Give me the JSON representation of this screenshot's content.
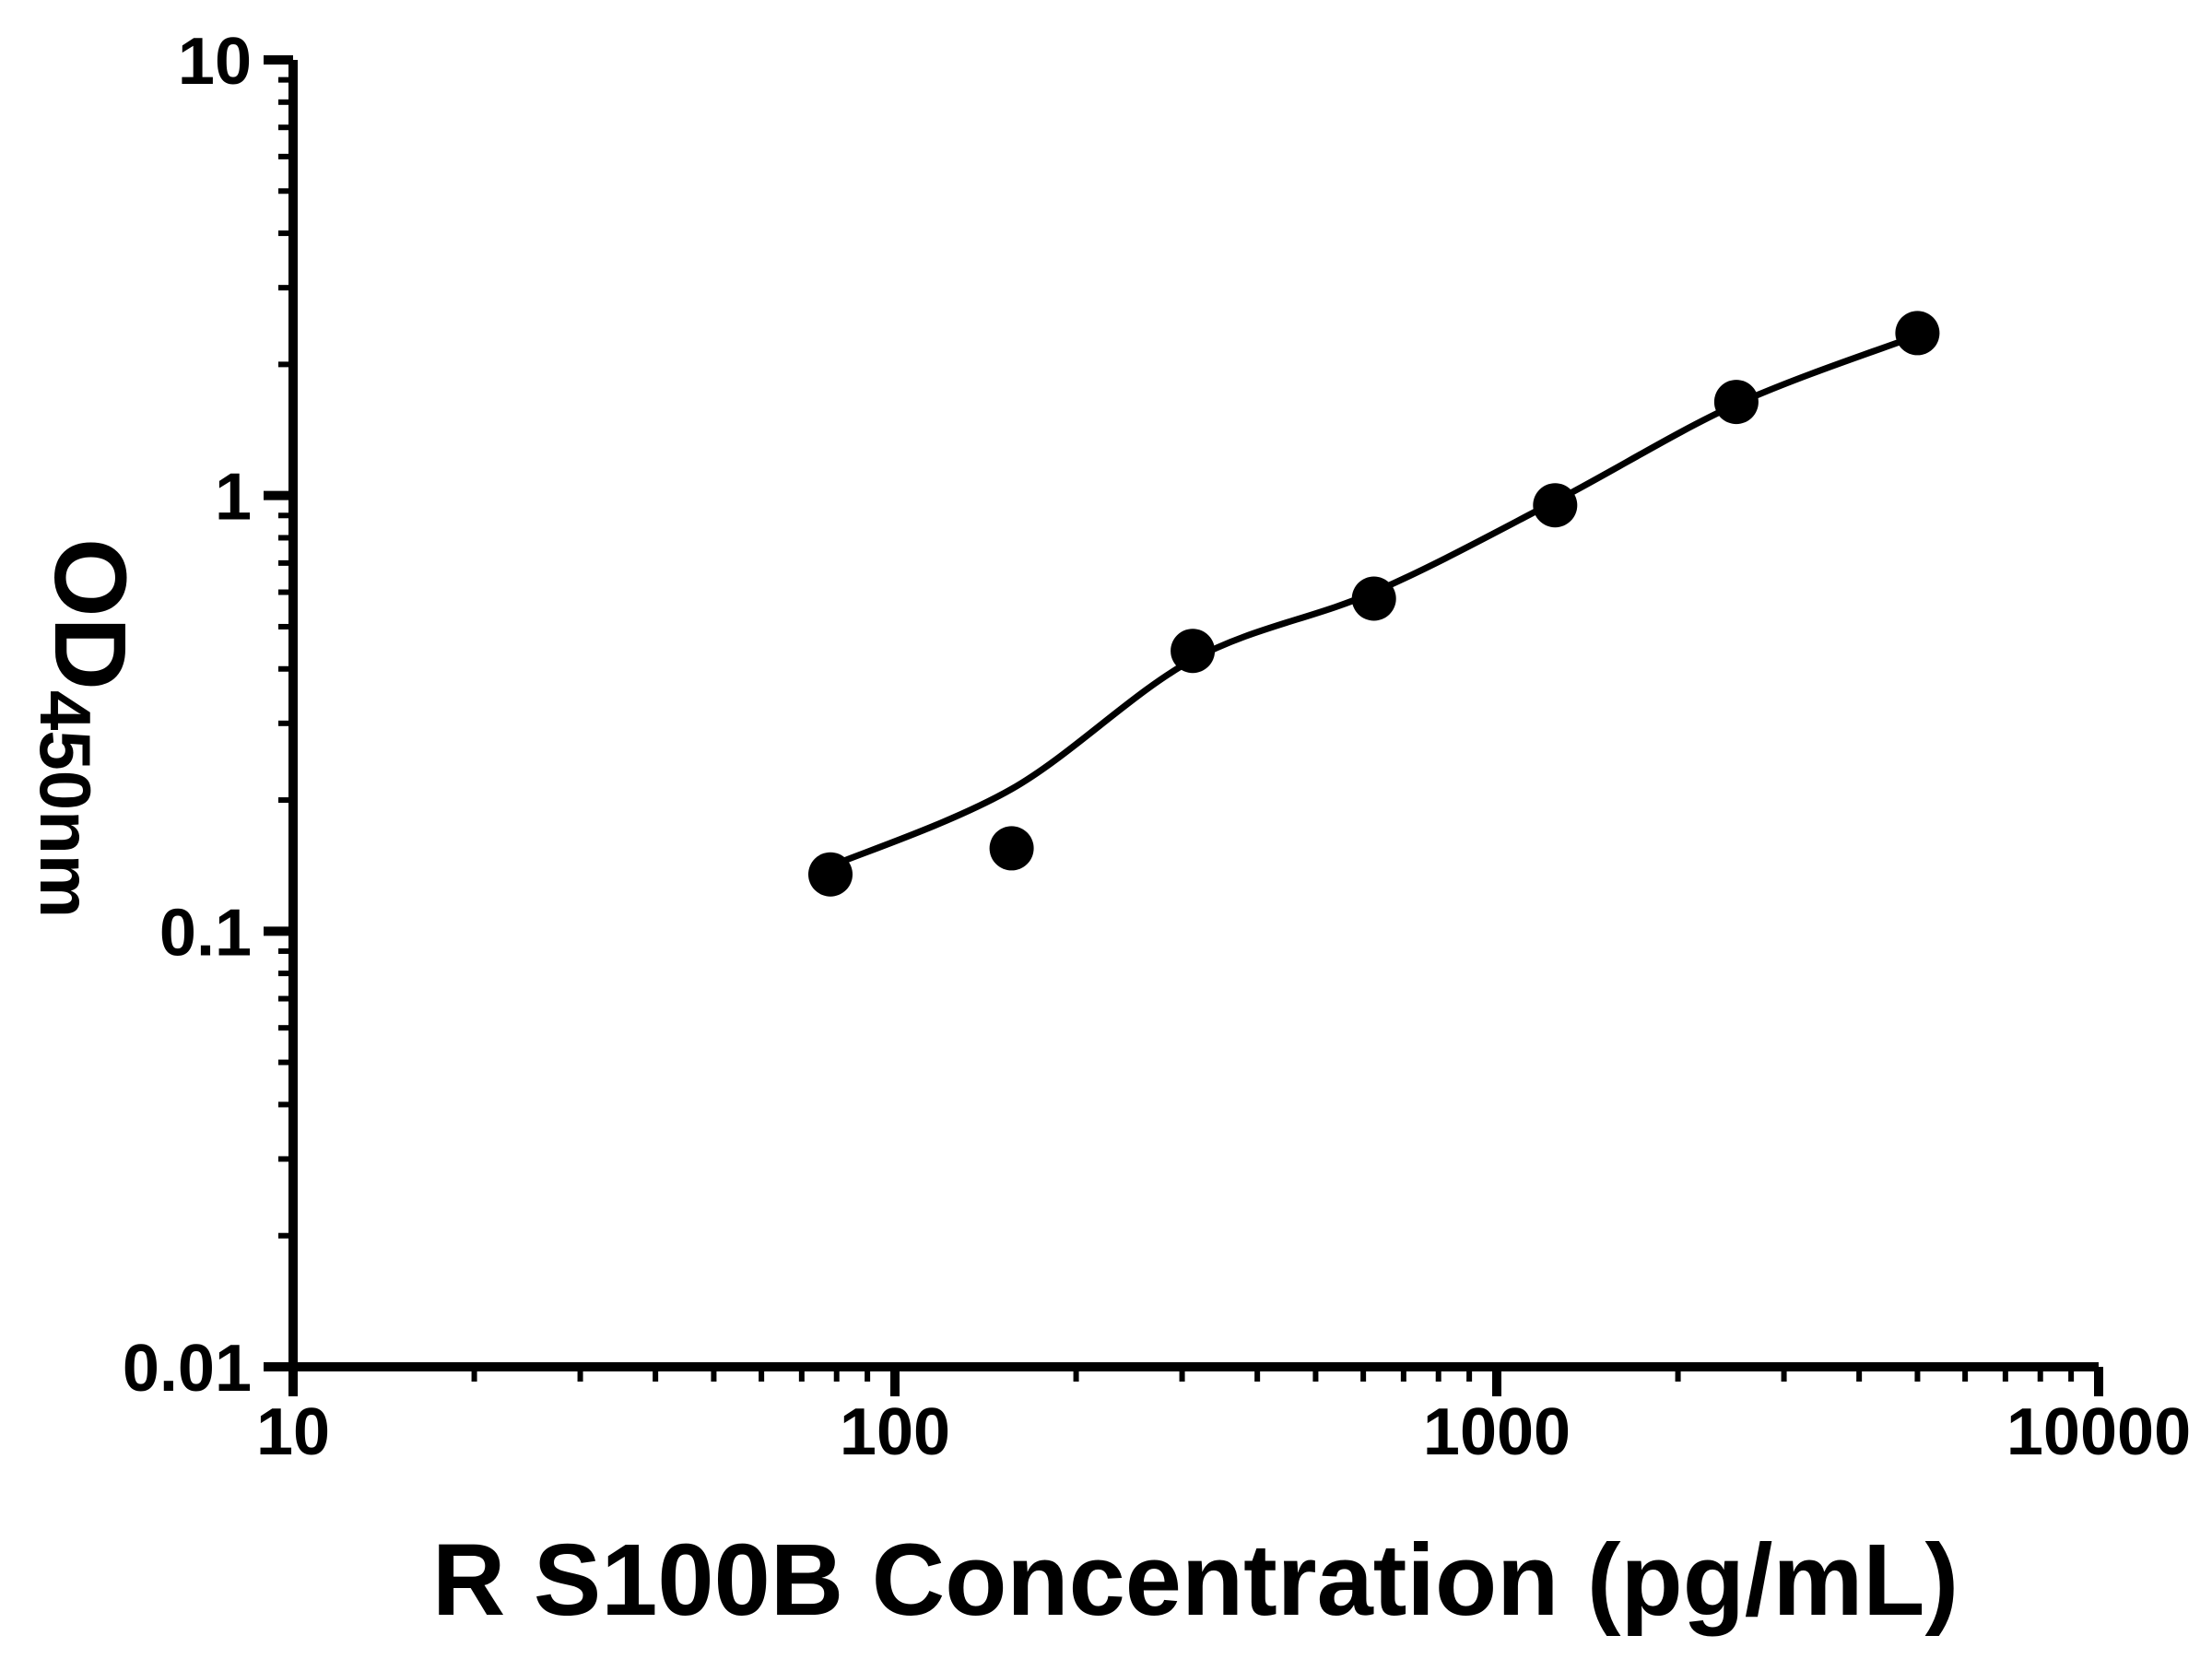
{
  "figure": {
    "background_color": "#ffffff",
    "foreground_color": "#000000"
  },
  "chart_data": {
    "type": "scatter",
    "title": "",
    "xlabel": "R S100B Concentration (pg/mL)",
    "ylabel": "OD",
    "ylabel_subscript": "450nm",
    "x_scale": "log",
    "y_scale": "log",
    "xlim": [
      10,
      10000
    ],
    "ylim": [
      0.01,
      10
    ],
    "grid": false,
    "legend": false,
    "minor_ticks": "log-decades-2-to-9",
    "marker_color": "#000000",
    "line_color": "#000000",
    "x_ticks": [
      {
        "v": 10,
        "label": "10"
      },
      {
        "v": 100,
        "label": "100"
      },
      {
        "v": 1000,
        "label": "1000"
      },
      {
        "v": 10000,
        "label": "10000"
      }
    ],
    "y_ticks": [
      {
        "v": 10,
        "label": "10"
      },
      {
        "v": 1,
        "label": "1"
      },
      {
        "v": 0.1,
        "label": "0.1"
      },
      {
        "v": 0.01,
        "label": "0.01"
      }
    ],
    "points": [
      {
        "x": 78.125,
        "y": 0.135
      },
      {
        "x": 156.25,
        "y": 0.155
      },
      {
        "x": 312.5,
        "y": 0.44
      },
      {
        "x": 625,
        "y": 0.58
      },
      {
        "x": 1250,
        "y": 0.95
      },
      {
        "x": 2500,
        "y": 1.64
      },
      {
        "x": 5000,
        "y": 2.36
      }
    ],
    "fit_curve": [
      {
        "x": 78.125,
        "y": 0.141
      },
      {
        "x": 156.25,
        "y": 0.212
      },
      {
        "x": 312.5,
        "y": 0.42
      },
      {
        "x": 625,
        "y": 0.6
      },
      {
        "x": 1250,
        "y": 0.97
      },
      {
        "x": 2500,
        "y": 1.62
      },
      {
        "x": 5000,
        "y": 2.33
      }
    ]
  }
}
